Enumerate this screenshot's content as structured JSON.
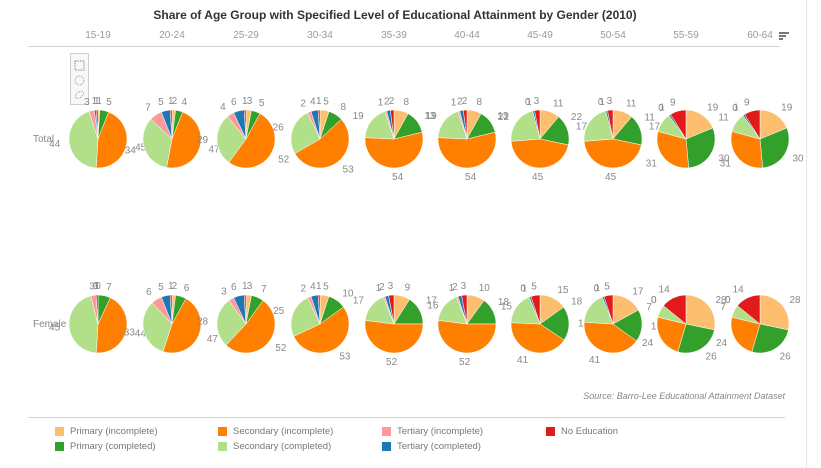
{
  "chart_data": {
    "type": "pie",
    "title": "Share of Age Group with Specified Level of Educational Attainment by Gender (2010)",
    "source": "Source: Barro-Lee Educational Attainment Dataset",
    "columns": [
      "15-19",
      "20-24",
      "25-29",
      "30-34",
      "35-39",
      "40-44",
      "45-49",
      "50-54",
      "55-59",
      "60-64"
    ],
    "rows": [
      "Total",
      "Female"
    ],
    "categories": [
      "Primary (incomplete)",
      "Primary (completed)",
      "Secondary (incomplete)",
      "Secondary (completed)",
      "Tertiary (incomplete)",
      "Tertiary (completed)",
      "No Education"
    ],
    "colors": [
      "#fdbf6f",
      "#33a02c",
      "#ff7f00",
      "#b2df8a",
      "#fb9a99",
      "#1f78b4",
      "#e31a1c"
    ],
    "values": {
      "Total": [
        [
          1,
          5,
          45,
          44,
          3,
          1,
          1
        ],
        [
          2,
          4,
          47,
          34,
          7,
          5,
          1
        ],
        [
          3,
          5,
          52,
          29,
          4,
          6,
          1
        ],
        [
          5,
          8,
          53,
          26,
          2,
          4,
          1
        ],
        [
          8,
          13,
          54,
          19,
          1,
          2,
          2
        ],
        [
          8,
          13,
          54,
          19,
          1,
          2,
          2
        ],
        [
          11,
          17,
          45,
          22,
          0,
          1,
          3
        ],
        [
          11,
          17,
          45,
          22,
          0,
          1,
          3
        ],
        [
          19,
          30,
          31,
          11,
          0,
          1,
          9
        ],
        [
          19,
          30,
          31,
          11,
          0,
          1,
          9
        ]
      ],
      "Female": [
        [
          0,
          7,
          44,
          45,
          3,
          0,
          1
        ],
        [
          2,
          6,
          47,
          33,
          6,
          5,
          1
        ],
        [
          3,
          7,
          52,
          28,
          3,
          6,
          1
        ],
        [
          5,
          10,
          53,
          25,
          2,
          4,
          1
        ],
        [
          9,
          16,
          52,
          17,
          1,
          2,
          3
        ],
        [
          10,
          15,
          52,
          17,
          1,
          2,
          3
        ],
        [
          15,
          19,
          41,
          18,
          0,
          1,
          5
        ],
        [
          17,
          18,
          41,
          18,
          0,
          1,
          5
        ],
        [
          28,
          26,
          24,
          7,
          0,
          0,
          14
        ],
        [
          28,
          26,
          24,
          7,
          0,
          0,
          14
        ]
      ]
    },
    "legend": {
      "placement": "bottom",
      "items": [
        {
          "label": "Primary (incomplete)",
          "color": "#fdbf6f"
        },
        {
          "label": "Primary (completed)",
          "color": "#33a02c"
        },
        {
          "label": "Secondary (incomplete)",
          "color": "#ff7f00"
        },
        {
          "label": "Secondary (completed)",
          "color": "#b2df8a"
        },
        {
          "label": "Tertiary (incomplete)",
          "color": "#fb9a99"
        },
        {
          "label": "Tertiary (completed)",
          "color": "#1f78b4"
        },
        {
          "label": "No Education",
          "color": "#e31a1c"
        }
      ]
    }
  },
  "toolbox": {
    "tools": [
      "rectangle-select",
      "circle-select",
      "lasso-select"
    ]
  },
  "sort_button": {
    "icon": "sort-icon"
  }
}
